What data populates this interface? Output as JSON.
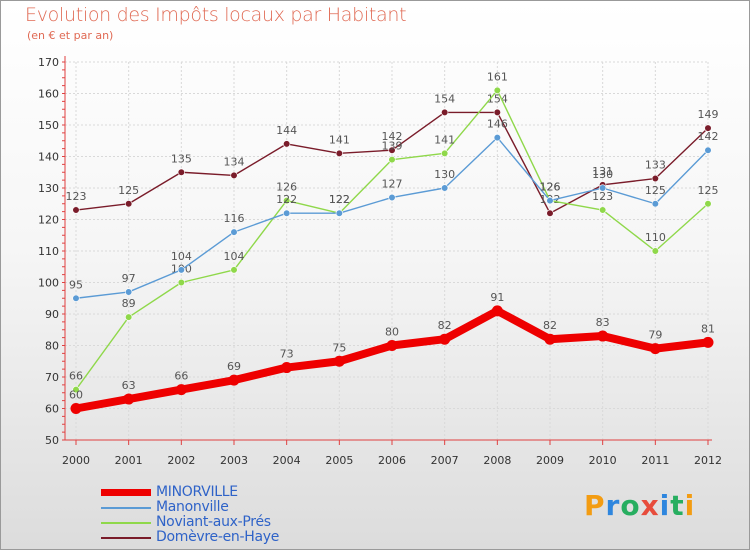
{
  "header": {
    "title": "Evolution des Impôts locaux par Habitant",
    "subtitle": "(en € et par an)"
  },
  "logo": {
    "letters": [
      "P",
      "r",
      "o",
      "x",
      "i",
      "t",
      "i"
    ],
    "colors": [
      "#f39c12",
      "#2e86de",
      "#27ae60",
      "#e74c3c",
      "#2e86de",
      "#27ae60",
      "#f39c12"
    ]
  },
  "chart_data": {
    "type": "line",
    "x": [
      "2000",
      "2001",
      "2002",
      "2003",
      "2004",
      "2005",
      "2006",
      "2007",
      "2008",
      "2009",
      "2010",
      "2011",
      "2012"
    ],
    "ylim": [
      50,
      170
    ],
    "yticks": [
      50,
      60,
      70,
      80,
      90,
      100,
      110,
      120,
      130,
      140,
      150,
      160,
      170
    ],
    "grid": true,
    "legend": "bottom-left",
    "series": [
      {
        "name": "MINORVILLE",
        "color": "#ee0000",
        "values": [
          60,
          63,
          66,
          69,
          73,
          75,
          80,
          82,
          91,
          82,
          83,
          79,
          81
        ]
      },
      {
        "name": "Manonville",
        "color": "#5b9bd5",
        "values": [
          95,
          97,
          104,
          116,
          122,
          122,
          127,
          130,
          146,
          126,
          130,
          125,
          142
        ]
      },
      {
        "name": "Noviant-aux-Prés",
        "color": "#8fd84a",
        "values": [
          66,
          89,
          100,
          104,
          126,
          122,
          139,
          141,
          161,
          126,
          123,
          110,
          125
        ]
      },
      {
        "name": "Domèvre-en-Haye",
        "color": "#7a1c2a",
        "values": [
          123,
          125,
          135,
          134,
          144,
          141,
          142,
          154,
          154,
          122,
          131,
          133,
          149
        ]
      }
    ]
  }
}
